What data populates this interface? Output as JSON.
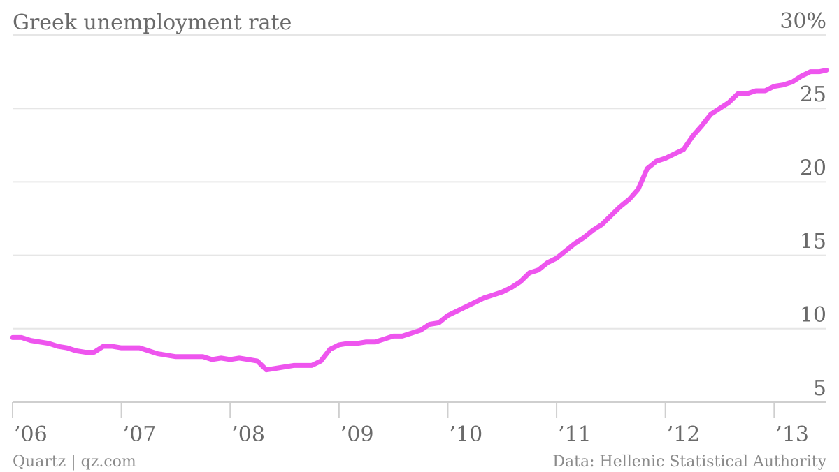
{
  "chart_data": {
    "type": "line",
    "title": "Greek unemployment rate",
    "y_unit_label": "30%",
    "ylim": [
      5,
      30
    ],
    "yticks": [
      5,
      10,
      15,
      20,
      25,
      30
    ],
    "ytick_labels": [
      "5",
      "10",
      "15",
      "20",
      "25",
      "30%"
    ],
    "xlim": [
      2006.0,
      2013.48
    ],
    "xticks": [
      2006,
      2007,
      2008,
      2009,
      2010,
      2011,
      2012,
      2013
    ],
    "xtick_labels": [
      "’06",
      "’07",
      "’08",
      "’09",
      "’10",
      "’11",
      "’12",
      "’13"
    ],
    "grid": true,
    "series": [
      {
        "color": "#ee55ee",
        "x": [
          2006.0,
          2006.083,
          2006.167,
          2006.25,
          2006.333,
          2006.417,
          2006.5,
          2006.583,
          2006.667,
          2006.75,
          2006.833,
          2006.917,
          2007.0,
          2007.083,
          2007.167,
          2007.25,
          2007.333,
          2007.417,
          2007.5,
          2007.583,
          2007.667,
          2007.75,
          2007.833,
          2007.917,
          2008.0,
          2008.083,
          2008.167,
          2008.25,
          2008.333,
          2008.417,
          2008.5,
          2008.583,
          2008.667,
          2008.75,
          2008.833,
          2008.917,
          2009.0,
          2009.083,
          2009.167,
          2009.25,
          2009.333,
          2009.417,
          2009.5,
          2009.583,
          2009.667,
          2009.75,
          2009.833,
          2009.917,
          2010.0,
          2010.083,
          2010.167,
          2010.25,
          2010.333,
          2010.417,
          2010.5,
          2010.583,
          2010.667,
          2010.75,
          2010.833,
          2010.917,
          2011.0,
          2011.083,
          2011.167,
          2011.25,
          2011.333,
          2011.417,
          2011.5,
          2011.583,
          2011.667,
          2011.75,
          2011.833,
          2011.917,
          2012.0,
          2012.083,
          2012.167,
          2012.25,
          2012.333,
          2012.417,
          2012.5,
          2012.583,
          2012.667,
          2012.75,
          2012.833,
          2012.917,
          2013.0,
          2013.083,
          2013.167,
          2013.25,
          2013.333,
          2013.417,
          2013.48
        ],
        "values": [
          9.4,
          9.4,
          9.2,
          9.1,
          9.0,
          8.8,
          8.7,
          8.5,
          8.4,
          8.4,
          8.8,
          8.8,
          8.7,
          8.7,
          8.7,
          8.5,
          8.3,
          8.2,
          8.1,
          8.1,
          8.1,
          8.1,
          7.9,
          8.0,
          7.9,
          8.0,
          7.9,
          7.8,
          7.2,
          7.3,
          7.4,
          7.5,
          7.5,
          7.5,
          7.8,
          8.6,
          8.9,
          9.0,
          9.0,
          9.1,
          9.1,
          9.3,
          9.5,
          9.5,
          9.7,
          9.9,
          10.3,
          10.4,
          10.9,
          11.2,
          11.5,
          11.8,
          12.1,
          12.3,
          12.5,
          12.8,
          13.2,
          13.8,
          14.0,
          14.5,
          14.8,
          15.3,
          15.8,
          16.2,
          16.7,
          17.1,
          17.7,
          18.3,
          18.8,
          19.5,
          20.9,
          21.4,
          21.6,
          21.9,
          22.2,
          23.1,
          23.8,
          24.6,
          25.0,
          25.4,
          26.0,
          26.0,
          26.2,
          26.2,
          26.5,
          26.6,
          26.8,
          27.2,
          27.5,
          27.5,
          27.6
        ]
      }
    ],
    "source_left": "Quartz | qz.com",
    "source_right": "Data: Hellenic Statistical Authority"
  }
}
